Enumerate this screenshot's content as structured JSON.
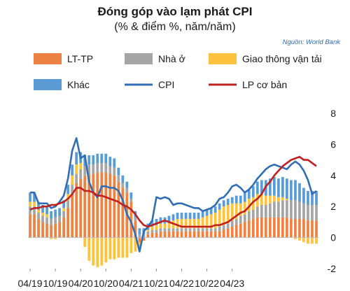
{
  "chart_data": {
    "type": "bar",
    "stacked": true,
    "title": "Đóng góp vào lạm phát CPI",
    "subtitle": "(% & điểm %, năm/năm)",
    "source": "Nguồn: World Bank",
    "ylim": [
      -2,
      8
    ],
    "yticks": [
      "-2",
      "0",
      "2",
      "4",
      "6",
      "8"
    ],
    "xticks": [
      "04/19",
      "10/19",
      "04/20",
      "10/20",
      "04/21",
      "10/21",
      "04/22",
      "10/22",
      "04/23"
    ],
    "grid": false,
    "legend_placement": "top",
    "colors": {
      "ltp": "#ee8144",
      "nha_o": "#a5a5a5",
      "giao_thong": "#ffc23e",
      "khac": "#5b9bd5",
      "cpi": "#2f6eb5",
      "lp": "#c0201e"
    },
    "legend": [
      {
        "label": "LT-TP",
        "kind": "bar",
        "color": "#ee8144"
      },
      {
        "label": "Nhà ở",
        "kind": "bar",
        "color": "#a5a5a5"
      },
      {
        "label": "Giao thông vận tải",
        "kind": "bar",
        "color": "#ffc23e"
      },
      {
        "label": "Khác",
        "kind": "bar",
        "color": "#5b9bd5"
      },
      {
        "label": "CPI",
        "kind": "line",
        "color": "#2f6eb5"
      },
      {
        "label": "LP cơ bản",
        "kind": "line",
        "color": "#c0201e"
      }
    ],
    "series": {
      "ltp": [
        1.5,
        1.5,
        1.2,
        1.0,
        0.9,
        0.8,
        0.9,
        1.0,
        1.3,
        1.9,
        2.8,
        3.5,
        3.8,
        4.0,
        4.1,
        4.1,
        4.2,
        4.2,
        4.2,
        4.1,
        4.0,
        3.6,
        3.2,
        2.9,
        2.3,
        1.1,
        -0.3,
        -0.2,
        0.2,
        0.3,
        0.3,
        0.4,
        0.4,
        0.4,
        0.4,
        0.4,
        0.4,
        0.4,
        0.4,
        0.4,
        0.4,
        0.4,
        0.4,
        0.4,
        0.4,
        0.4,
        0.5,
        0.6,
        0.7,
        0.8,
        0.9,
        1.0,
        1.1,
        1.2,
        1.3,
        1.3,
        1.3,
        1.3,
        1.3,
        1.3,
        1.3,
        1.3,
        1.2,
        1.2,
        1.2,
        1.2,
        1.1,
        1.1,
        1.1
      ],
      "nha_o": [
        0.5,
        0.5,
        0.4,
        0.4,
        0.4,
        0.4,
        0.4,
        0.4,
        0.4,
        0.5,
        0.6,
        0.6,
        0.6,
        0.6,
        0.6,
        0.6,
        0.6,
        0.6,
        0.6,
        0.5,
        0.5,
        0.4,
        0.3,
        0.3,
        0.2,
        0.2,
        0.2,
        0.2,
        0.2,
        0.2,
        0.2,
        0.2,
        0.2,
        0.2,
        0.2,
        0.2,
        0.2,
        0.2,
        0.2,
        0.2,
        0.2,
        0.2,
        0.2,
        0.2,
        0.2,
        0.3,
        0.3,
        0.3,
        0.4,
        0.4,
        0.5,
        0.5,
        0.6,
        0.6,
        0.7,
        0.8,
        0.8,
        0.9,
        1.0,
        1.0,
        1.1,
        1.1,
        1.2,
        1.2,
        1.1,
        1.0,
        1.0,
        1.0,
        1.0
      ],
      "giao_thong": [
        0.3,
        0.3,
        0.2,
        0.2,
        0.2,
        -0.1,
        -0.1,
        0.0,
        0.2,
        0.4,
        0.6,
        0.6,
        0.4,
        -0.6,
        -1.5,
        -1.8,
        -1.9,
        -1.8,
        -1.6,
        -1.4,
        -1.4,
        -1.3,
        -1.3,
        -1.3,
        -1.0,
        -0.9,
        -0.6,
        0.0,
        0.1,
        0.2,
        0.3,
        0.3,
        0.3,
        0.4,
        0.5,
        0.6,
        0.6,
        0.6,
        0.6,
        0.6,
        0.6,
        0.7,
        0.8,
        0.9,
        1.0,
        1.1,
        1.2,
        1.2,
        1.1,
        1.0,
        0.8,
        0.8,
        0.8,
        0.8,
        0.8,
        0.7,
        0.6,
        0.5,
        0.4,
        0.3,
        0.2,
        0.1,
        0.0,
        -0.1,
        -0.2,
        -0.3,
        -0.4,
        -0.4,
        -0.4
      ],
      "khac": [
        0.6,
        0.6,
        0.5,
        0.5,
        0.5,
        0.5,
        0.5,
        0.5,
        0.5,
        0.6,
        0.7,
        0.8,
        0.7,
        0.7,
        0.6,
        0.6,
        0.6,
        0.6,
        0.6,
        0.6,
        0.6,
        0.5,
        0.5,
        0.4,
        0.4,
        0.4,
        0.4,
        0.4,
        0.4,
        0.4,
        0.4,
        0.4,
        0.4,
        0.4,
        0.4,
        0.4,
        0.4,
        0.4,
        0.4,
        0.4,
        0.4,
        0.4,
        0.4,
        0.4,
        0.4,
        0.4,
        0.4,
        0.4,
        0.4,
        0.5,
        0.5,
        0.6,
        0.6,
        0.7,
        0.8,
        0.9,
        1.0,
        1.1,
        1.2,
        1.2,
        1.3,
        1.3,
        1.3,
        1.3,
        1.2,
        1.0,
        0.9,
        0.9,
        0.9
      ],
      "cpi": [
        2.9,
        2.9,
        2.2,
        2.2,
        2.2,
        1.9,
        2.0,
        2.3,
        2.7,
        3.8,
        5.6,
        6.4,
        5.1,
        5.3,
        3.6,
        2.9,
        2.6,
        3.3,
        3.3,
        3.2,
        3.2,
        3.0,
        2.4,
        1.5,
        1.0,
        0.2,
        -0.9,
        0.4,
        0.7,
        1.1,
        2.6,
        2.5,
        2.6,
        2.5,
        2.1,
        2.2,
        2.2,
        2.1,
        2.0,
        1.9,
        1.9,
        1.7,
        1.8,
        1.9,
        2.1,
        2.5,
        2.6,
        2.9,
        3.3,
        3.4,
        3.2,
        2.9,
        3.1,
        3.4,
        3.8,
        4.1,
        4.4,
        4.6,
        4.7,
        4.6,
        4.5,
        4.4,
        4.7,
        4.9,
        4.7,
        4.3,
        3.7,
        2.8,
        3.0
      ],
      "lp": [
        1.8,
        1.9,
        1.9,
        2.0,
        2.0,
        2.1,
        2.1,
        2.2,
        2.3,
        2.5,
        2.8,
        3.2,
        3.2,
        3.0,
        3.0,
        2.9,
        2.7,
        2.7,
        2.6,
        2.5,
        2.4,
        2.3,
        2.1,
        2.0,
        1.8,
        1.5,
        1.1,
        0.8,
        0.7,
        0.8,
        0.9,
        1.0,
        1.1,
        1.0,
        0.9,
        0.8,
        0.7,
        0.7,
        0.7,
        0.7,
        0.7,
        0.7,
        0.7,
        0.7,
        0.8,
        0.8,
        0.9,
        1.0,
        1.2,
        1.4,
        1.6,
        1.7,
        2.0,
        2.3,
        2.5,
        2.8,
        3.3,
        3.6,
        4.0,
        4.3,
        4.6,
        4.8,
        5.0,
        5.1,
        5.2,
        5.0,
        5.0,
        4.8,
        4.6
      ]
    }
  }
}
